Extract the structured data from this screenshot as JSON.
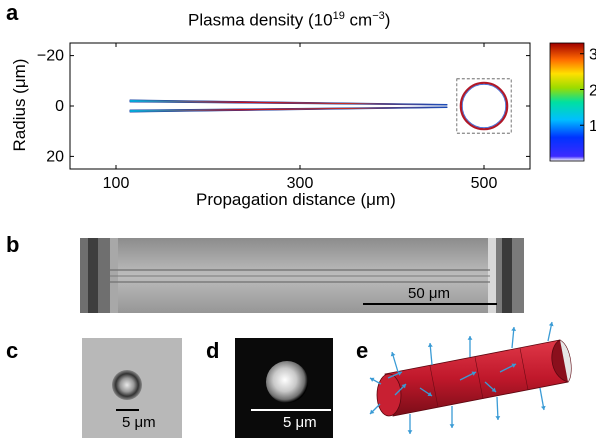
{
  "panels": {
    "a": {
      "label": "a",
      "title": "Plasma density (10",
      "title_exp1": "19",
      "title_mid": " cm",
      "title_exp2": "−3",
      "title_end": ")",
      "ylabel": "Radius (",
      "ylabel_unit": "μm",
      "ylabel_end": ")",
      "xlabel": "Propagation distance (",
      "xlabel_unit": "μm",
      "xlabel_end": ")"
    },
    "b": {
      "label": "b",
      "scalebar_label": "50 μm"
    },
    "c": {
      "label": "c",
      "scalebar_label": "5 μm"
    },
    "d": {
      "label": "d",
      "scalebar_label": "5 μm"
    },
    "e": {
      "label": "e"
    }
  },
  "colors": {
    "tube_red": "#c0182b",
    "arrow_blue": "#3a9bd5"
  },
  "chart_data": {
    "type": "heatmap",
    "title": "Plasma density (10^19 cm^-3)",
    "xlabel": "Propagation distance (μm)",
    "ylabel": "Radius (μm)",
    "xlim": [
      50,
      550
    ],
    "ylim": [
      -25,
      25
    ],
    "y_inverted": true,
    "x_ticks": [
      100,
      300,
      500
    ],
    "y_ticks": [
      -20,
      0,
      20
    ],
    "colorbar": {
      "ticks": [
        1,
        2,
        3
      ],
      "tick_labels": [
        "1",
        "2",
        "3"
      ],
      "range": [
        0,
        3.3
      ]
    },
    "structures": [
      {
        "name": "upper wall",
        "x_start": 115,
        "x_end": 460,
        "radius_start": -2,
        "radius_end": -0.5
      },
      {
        "name": "lower wall",
        "x_start": 115,
        "x_end": 460,
        "radius_start": 2,
        "radius_end": 0.5
      },
      {
        "name": "cross-section",
        "x_center": 500,
        "radius": 4
      }
    ]
  }
}
